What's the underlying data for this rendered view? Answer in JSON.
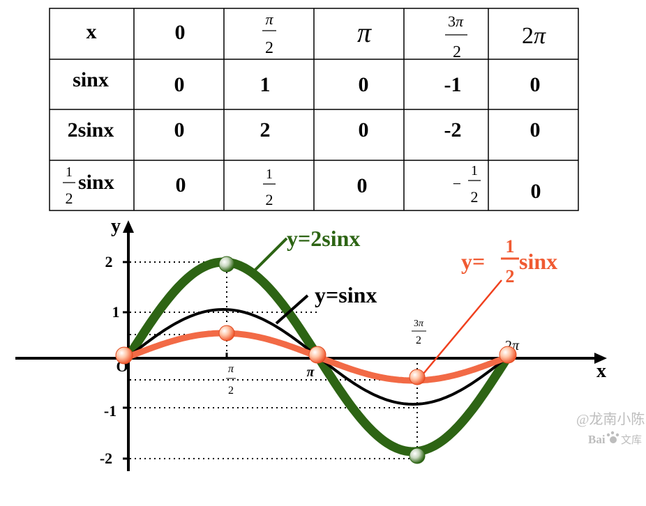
{
  "table": {
    "header": [
      "x",
      "0",
      "π/2",
      "π",
      "3π/2",
      "2π"
    ],
    "rows": [
      {
        "label": "sinx",
        "values": [
          "0",
          "1",
          "0",
          "-1",
          "0"
        ]
      },
      {
        "label": "2sinx",
        "values": [
          "0",
          "2",
          "0",
          "-2",
          "0"
        ]
      },
      {
        "label": "(1/2)sinx",
        "values": [
          "0",
          "1/2",
          "0",
          "−1/2",
          "0"
        ]
      }
    ]
  },
  "chart_data": {
    "type": "line",
    "xlabel": "x",
    "ylabel": "y",
    "origin_label": "O",
    "x_ticks": [
      "π/2",
      "π",
      "3π/2",
      "2π"
    ],
    "y_ticks": [
      "2",
      "1",
      "-1",
      "-2"
    ],
    "xlim": [
      0,
      6.2832
    ],
    "ylim": [
      -2,
      2
    ],
    "series": [
      {
        "name": "y=2sinx",
        "amplitude": 2,
        "color": "#2d6414"
      },
      {
        "name": "y=sinx",
        "amplitude": 1,
        "color": "#000000"
      },
      {
        "name": "y=(1/2)sinx",
        "amplitude": 0.5,
        "color": "#f26a46"
      }
    ],
    "legend": {
      "y2": "y=2sinx",
      "y1": "y=sinx",
      "yhalf_prefix": "y=",
      "yhalf_num": "1",
      "yhalf_den": "2",
      "yhalf_suffix": "sinx"
    }
  },
  "watermark": {
    "line1": "@龙南小陈",
    "line2": "Bai",
    "line3": "文库"
  }
}
